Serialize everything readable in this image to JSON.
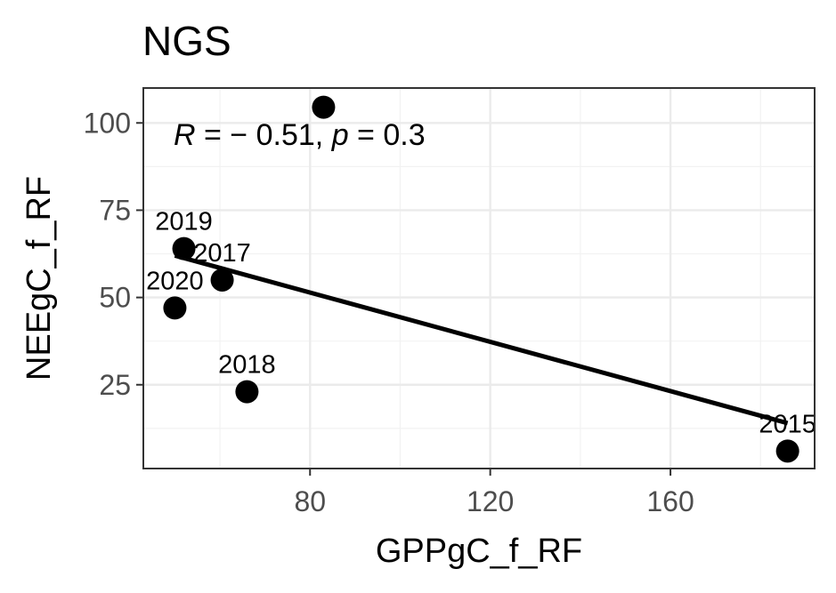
{
  "chart_data": {
    "type": "scatter",
    "title": "NGS",
    "xlabel": "GPPgC_f_RF",
    "ylabel": "NEEgC_f_RF",
    "xlim": [
      43,
      192
    ],
    "ylim": [
      1,
      110
    ],
    "x_ticks": [
      80,
      120,
      160
    ],
    "y_ticks": [
      25,
      50,
      75,
      100
    ],
    "grid": true,
    "points": [
      {
        "label": "2015",
        "x": 186,
        "y": 6
      },
      {
        "label": "2017",
        "x": 60.5,
        "y": 55
      },
      {
        "label": "2018",
        "x": 66,
        "y": 23
      },
      {
        "label": "2019",
        "x": 52,
        "y": 64
      },
      {
        "label": "2020",
        "x": 50,
        "y": 47
      },
      {
        "label": "",
        "x": 83,
        "y": 104.5
      }
    ],
    "regression_line": {
      "x": [
        50,
        186
      ],
      "y": [
        62,
        14
      ]
    },
    "annotation": {
      "r_symbol": "R",
      "r_text": " = − 0.51, ",
      "p_symbol": "p",
      "p_text": " = 0.3"
    }
  }
}
